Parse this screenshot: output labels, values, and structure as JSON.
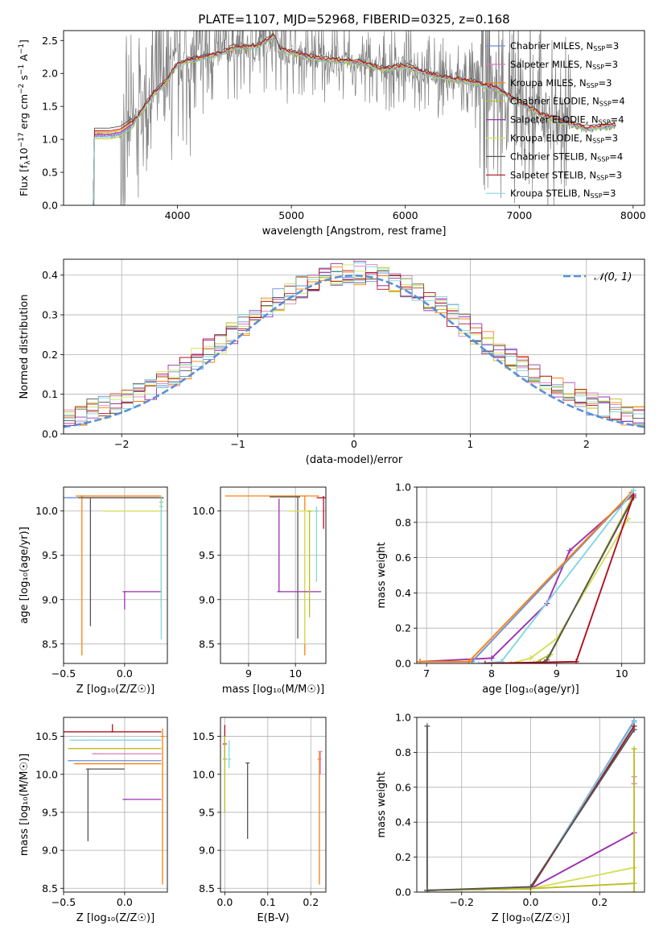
{
  "figure": {
    "title": "PLATE=1107, MJD=52968, FIBERID=0325, z=0.168"
  },
  "legend_entries": [
    {
      "base": "Chabrier MILES, N",
      "sub": "SSP",
      "suffix": "=3",
      "color": "#6a8fd8"
    },
    {
      "base": "Salpeter MILES, N",
      "sub": "SSP",
      "suffix": "=3",
      "color": "#e377c2"
    },
    {
      "base": "Kroupa MILES, N",
      "sub": "SSP",
      "suffix": "=3",
      "color": "#ff7f0e"
    },
    {
      "base": "Chabrier ELODIE, N",
      "sub": "SSP",
      "suffix": "=4",
      "color": "#bcbd22"
    },
    {
      "base": "Salpeter ELODIE, N",
      "sub": "SSP",
      "suffix": "=4",
      "color": "#9b30b0"
    },
    {
      "base": "Kroupa ELODIE, N",
      "sub": "SSP",
      "suffix": "=3",
      "color": "#d4e157"
    },
    {
      "base": "Chabrier STELIB, N",
      "sub": "SSP",
      "suffix": "=4",
      "color": "#555555"
    },
    {
      "base": "Salpeter STELIB, N",
      "sub": "SSP",
      "suffix": "=3",
      "color": "#b01020"
    },
    {
      "base": "Kroupa STELIB, N",
      "sub": "SSP",
      "suffix": "=3",
      "color": "#80d8e0"
    }
  ],
  "chart_data": [
    {
      "id": "spectrum",
      "type": "line",
      "title": "",
      "xlabel": "wavelength [Angstrom, rest frame]",
      "ylabel_parts": [
        "Flux [f",
        "λ",
        "10",
        "−17",
        " erg cm",
        "−2",
        " s",
        "−1",
        " A",
        "−1",
        "]"
      ],
      "xlim": [
        3000,
        8100
      ],
      "ylim": [
        0,
        2.65
      ],
      "xticks": [
        4000,
        5000,
        6000,
        7000,
        8000
      ],
      "yticks": [
        0.0,
        0.5,
        1.0,
        1.5,
        2.0,
        2.5
      ],
      "grid": false,
      "legend": "top-right",
      "data_color": "#7f7f7f",
      "continuum": {
        "x": [
          3250,
          3270,
          3400,
          3500,
          3600,
          3700,
          3800,
          3900,
          3950,
          4000,
          4100,
          4200,
          4300,
          4400,
          4500,
          4600,
          4700,
          4800,
          4850,
          4900,
          5000,
          5200,
          5400,
          5600,
          5800,
          6000,
          6200,
          6400,
          6600,
          6800,
          7000,
          7200,
          7400,
          7600,
          7800,
          7850
        ],
        "y": [
          0,
          1.05,
          1.05,
          1.08,
          1.2,
          1.45,
          1.7,
          1.85,
          2.0,
          2.12,
          2.18,
          2.22,
          2.25,
          2.3,
          2.38,
          2.38,
          2.4,
          2.5,
          2.55,
          2.35,
          2.3,
          2.22,
          2.18,
          2.15,
          2.05,
          2.1,
          1.98,
          1.9,
          1.85,
          1.75,
          1.55,
          1.35,
          1.25,
          1.15,
          1.2,
          1.2
        ]
      },
      "model_offsets": [
        0.0,
        0.02,
        0.06,
        -0.04,
        0.03,
        0.05,
        0.12,
        0.08,
        -0.02
      ]
    },
    {
      "id": "residuals",
      "type": "bar",
      "title": "",
      "xlabel": "(data-model)/error",
      "ylabel": "Normed distribution",
      "xlim": [
        -2.5,
        2.5
      ],
      "ylim": [
        0,
        0.44
      ],
      "xticks": [
        -2,
        -1,
        0,
        1,
        2
      ],
      "yticks": [
        0.0,
        0.1,
        0.2,
        0.3,
        0.4
      ],
      "grid": true,
      "legend": "top-right",
      "gaussian": {
        "name": "𝒩(0, 1)",
        "mu": 0,
        "sigma": 1,
        "color": "#5b8fd6"
      },
      "bin_width": 0.1
    },
    {
      "id": "age_vs_Z",
      "type": "scatter",
      "xlabel": "Z [log₁₀(Z/Z☉)]",
      "ylabel": "age  [log₁₀(age/yr)]",
      "xlim": [
        -0.5,
        0.35
      ],
      "ylim": [
        8.28,
        10.27
      ],
      "xticks": [
        -0.5,
        0.0
      ],
      "yticks": [
        8.5,
        9.0,
        9.5,
        10.0
      ],
      "grid": true,
      "points": [
        {
          "series": 0,
          "x": -0.45,
          "y": 10.15,
          "xerr": [
            0.05,
            0.75
          ],
          "yerr": [
            0,
            0
          ]
        },
        {
          "series": 2,
          "x": -0.35,
          "y": 10.17,
          "xerr": [
            0.05,
            0.65
          ],
          "yerr": [
            1.8,
            0
          ]
        },
        {
          "series": 6,
          "x": -0.28,
          "y": 10.15,
          "xerr": [
            0.1,
            0.6
          ],
          "yerr": [
            1.45,
            0
          ]
        },
        {
          "series": 5,
          "x": -0.08,
          "y": 10.0,
          "xerr": [
            0.1,
            0.38
          ],
          "yerr": [
            0,
            0
          ]
        },
        {
          "series": 4,
          "x": 0.0,
          "y": 9.09,
          "xerr": [
            0.0,
            0.3
          ],
          "yerr": [
            0.2,
            0
          ]
        },
        {
          "series": 3,
          "x": 0.3,
          "y": 10.1,
          "xerr": [
            0,
            0
          ],
          "yerr": [
            1.2,
            0.05
          ]
        },
        {
          "series": 8,
          "x": 0.3,
          "y": 10.05,
          "xerr": [
            0,
            0
          ],
          "yerr": [
            1.5,
            0.1
          ]
        }
      ]
    },
    {
      "id": "age_vs_mass",
      "type": "scatter",
      "xlabel": "mass [log₁₀(M/M☉)]",
      "ylabel": "",
      "xlim": [
        8.4,
        10.65
      ],
      "ylim": [
        8.28,
        10.27
      ],
      "xticks": [
        9,
        10
      ],
      "yticks": [
        8.5,
        9.0,
        9.5,
        10.0
      ],
      "grid": true,
      "points": [
        {
          "series": 2,
          "x": 10.2,
          "y": 10.17,
          "xerr": [
            1.7,
            0.3
          ],
          "yerr": [
            1.8,
            0
          ]
        },
        {
          "series": 6,
          "x": 10.05,
          "y": 10.16,
          "xerr": [
            0.6,
            0.05
          ],
          "yerr": [
            1.6,
            0
          ]
        },
        {
          "series": 7,
          "x": 10.6,
          "y": 10.15,
          "xerr": [
            0.15,
            0.0
          ],
          "yerr": [
            0.35,
            0.02
          ]
        },
        {
          "series": 5,
          "x": 10.2,
          "y": 10.0,
          "xerr": [
            0.35,
            0.3
          ],
          "yerr": [
            1.5,
            0
          ]
        },
        {
          "series": 4,
          "x": 9.65,
          "y": 9.09,
          "xerr": [
            0,
            0.9
          ],
          "yerr": [
            0,
            1.05
          ]
        },
        {
          "series": 3,
          "x": 10.3,
          "y": 10.0,
          "xerr": [
            0,
            0
          ],
          "yerr": [
            1.2,
            0
          ]
        },
        {
          "series": 8,
          "x": 10.45,
          "y": 10.0,
          "xerr": [
            0,
            0
          ],
          "yerr": [
            0.8,
            0.05
          ]
        }
      ]
    },
    {
      "id": "massweight_vs_age",
      "type": "line",
      "xlabel": "age  [log₁₀(age/yr)]",
      "ylabel": "mass weight",
      "xlim": [
        6.85,
        10.35
      ],
      "ylim": [
        0,
        1.0
      ],
      "xticks": [
        7,
        8,
        9,
        10
      ],
      "yticks": [
        0.0,
        0.2,
        0.4,
        0.6,
        0.8,
        1.0
      ],
      "grid": true,
      "series": [
        {
          "series": 4,
          "x": [
            6.9,
            8.0,
            8.85,
            9.2,
            10.18
          ],
          "y": [
            0.01,
            0.03,
            0.34,
            0.64,
            0.96
          ]
        },
        {
          "series": 0,
          "x": [
            6.9,
            7.7,
            10.18
          ],
          "y": [
            0.01,
            0.01,
            0.98
          ]
        },
        {
          "series": 2,
          "x": [
            6.9,
            7.65,
            10.15
          ],
          "y": [
            0.01,
            0.01,
            0.97
          ]
        },
        {
          "series": 8,
          "x": [
            7.8,
            8.15,
            10.18
          ],
          "y": [
            0.0,
            0.01,
            0.98
          ]
        },
        {
          "series": 5,
          "x": [
            8.3,
            8.6,
            9.0,
            10.1
          ],
          "y": [
            0.0,
            0.03,
            0.14,
            0.82
          ]
        },
        {
          "series": 3,
          "x": [
            8.65,
            8.9,
            10.15
          ],
          "y": [
            0.0,
            0.05,
            0.93
          ]
        },
        {
          "series": 6,
          "x": [
            8.75,
            8.85,
            10.18
          ],
          "y": [
            0.0,
            0.02,
            0.94
          ]
        },
        {
          "series": 7,
          "x": [
            7.9,
            9.3,
            10.18
          ],
          "y": [
            0.0,
            0.01,
            0.95
          ]
        }
      ]
    },
    {
      "id": "mass_vs_Z",
      "type": "scatter",
      "xlabel": "Z [log₁₀(Z/Z☉)]",
      "ylabel": "mass [log₁₀(M/M☉)]",
      "xlim": [
        -0.5,
        0.35
      ],
      "ylim": [
        8.45,
        10.75
      ],
      "xticks": [
        -0.5,
        0.0
      ],
      "yticks": [
        8.5,
        9.0,
        9.5,
        10.0,
        10.5
      ],
      "grid": true,
      "points": [
        {
          "series": 7,
          "x": -0.1,
          "y": 10.56,
          "xerr": [
            0.4,
            0.4
          ],
          "yerr": [
            0,
            0.1
          ]
        },
        {
          "series": 8,
          "x": -0.25,
          "y": 10.45,
          "xerr": [
            0.2,
            0.55
          ],
          "yerr": [
            0,
            0
          ]
        },
        {
          "series": 3,
          "x": -0.45,
          "y": 10.34,
          "xerr": [
            0,
            0.75
          ],
          "yerr": [
            0,
            0
          ]
        },
        {
          "series": 1,
          "x": -0.25,
          "y": 10.27,
          "xerr": [
            0,
            0.55
          ],
          "yerr": [
            0,
            0
          ]
        },
        {
          "series": 0,
          "x": -0.45,
          "y": 10.18,
          "xerr": [
            0,
            0.75
          ],
          "yerr": [
            0,
            0
          ]
        },
        {
          "series": 2,
          "x": -0.4,
          "y": 10.14,
          "xerr": [
            0,
            0.7
          ],
          "yerr": [
            0,
            0
          ]
        },
        {
          "series": 6,
          "x": -0.3,
          "y": 10.07,
          "xerr": [
            0,
            0.3
          ],
          "yerr": [
            0.95,
            0
          ]
        },
        {
          "series": 4,
          "x": 0.0,
          "y": 9.67,
          "xerr": [
            0,
            0.3
          ],
          "yerr": [
            0,
            0
          ]
        },
        {
          "series": 2,
          "x": 0.31,
          "y": 10.5,
          "xerr": [
            0,
            0
          ],
          "yerr": [
            1.95,
            0.1
          ]
        }
      ]
    },
    {
      "id": "mass_vs_ebv",
      "type": "scatter",
      "xlabel": "E(B-V)",
      "ylabel": "",
      "xlim": [
        -0.01,
        0.235
      ],
      "ylim": [
        8.45,
        10.75
      ],
      "xticks": [
        0.0,
        0.1,
        0.2
      ],
      "yticks": [
        8.5,
        9.0,
        9.5,
        10.0,
        10.5
      ],
      "grid": true,
      "points": [
        {
          "series": 7,
          "x": 0.0,
          "y": 10.4,
          "xerr": [
            0,
            0
          ],
          "yerr": [
            0.2,
            0.25
          ]
        },
        {
          "series": 3,
          "x": 0.0,
          "y": 10.2,
          "xerr": [
            0,
            0
          ],
          "yerr": [
            0.7,
            0.3
          ]
        },
        {
          "series": 8,
          "x": 0.01,
          "y": 10.2,
          "xerr": [
            0,
            0
          ],
          "yerr": [
            0.12,
            0.25
          ]
        },
        {
          "series": 6,
          "x": 0.053,
          "y": 10.15,
          "xerr": [
            0,
            0
          ],
          "yerr": [
            1.0,
            0
          ]
        },
        {
          "series": 2,
          "x": 0.22,
          "y": 10.2,
          "xerr": [
            0,
            0
          ],
          "yerr": [
            1.65,
            0.1
          ]
        },
        {
          "series": 1,
          "x": 0.222,
          "y": 10.3,
          "xerr": [
            0,
            0
          ],
          "yerr": [
            0.3,
            0.0
          ]
        }
      ]
    },
    {
      "id": "massweight_vs_Z",
      "type": "line",
      "xlabel": "Z [log₁₀(Z/Z☉)]",
      "ylabel": "mass weight",
      "xlim": [
        -0.33,
        0.33
      ],
      "ylim": [
        0,
        1.0
      ],
      "xticks": [
        -0.2,
        0.0,
        0.2
      ],
      "yticks": [
        0.0,
        0.2,
        0.4,
        0.6,
        0.8,
        1.0
      ],
      "grid": true,
      "series": [
        {
          "series": 6,
          "x": [
            -0.3,
            -0.3
          ],
          "y": [
            0.0,
            0.95
          ]
        },
        {
          "series": 0,
          "x": [
            -0.3,
            0.0,
            0.3
          ],
          "y": [
            0.01,
            0.02,
            0.98
          ]
        },
        {
          "series": 8,
          "x": [
            -0.3,
            0.0,
            0.3
          ],
          "y": [
            0.01,
            0.02,
            0.97
          ]
        },
        {
          "series": 7,
          "x": [
            -0.3,
            0.0,
            0.3
          ],
          "y": [
            0.01,
            0.02,
            0.95
          ]
        },
        {
          "series": 4,
          "x": [
            -0.3,
            0.0,
            0.3
          ],
          "y": [
            0.01,
            0.02,
            0.34
          ]
        },
        {
          "series": 5,
          "x": [
            -0.3,
            0.0,
            0.3
          ],
          "y": [
            0.01,
            0.02,
            0.14
          ]
        },
        {
          "series": 3,
          "x": [
            -0.3,
            0.0,
            0.3
          ],
          "y": [
            0.01,
            0.02,
            0.05
          ]
        },
        {
          "series": 6,
          "x": [
            -0.3,
            0.0,
            0.3
          ],
          "y": [
            0.01,
            0.03,
            0.93
          ]
        },
        {
          "series": 1,
          "x": [
            0.3,
            0.3
          ],
          "y": [
            0.62,
            0.66
          ]
        },
        {
          "series": 3,
          "x": [
            0.3,
            0.3
          ],
          "y": [
            0.0,
            0.82
          ]
        }
      ]
    }
  ]
}
